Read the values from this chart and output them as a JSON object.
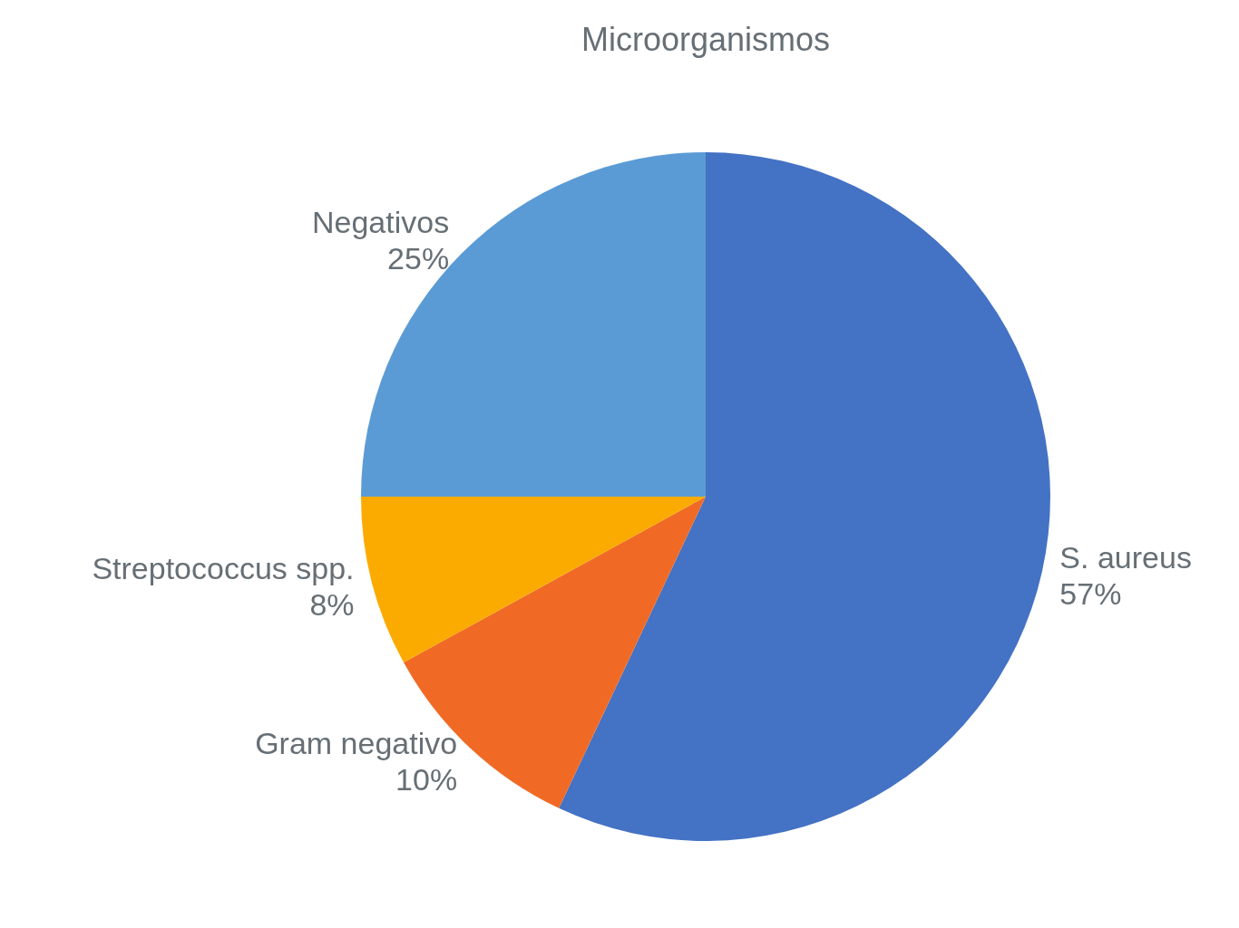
{
  "chart_data": {
    "type": "pie",
    "title": "Microorganismos",
    "categories": [
      "S. aureus",
      "Gram negativo",
      "Streptococcus spp.",
      "Negativos"
    ],
    "values": [
      57,
      10,
      8,
      25
    ],
    "colors": [
      "#4472c4",
      "#f06a25",
      "#fbab00",
      "#5b9bd5"
    ],
    "value_labels": [
      "57%",
      "10%",
      "8%",
      "25%"
    ],
    "legend": false
  }
}
